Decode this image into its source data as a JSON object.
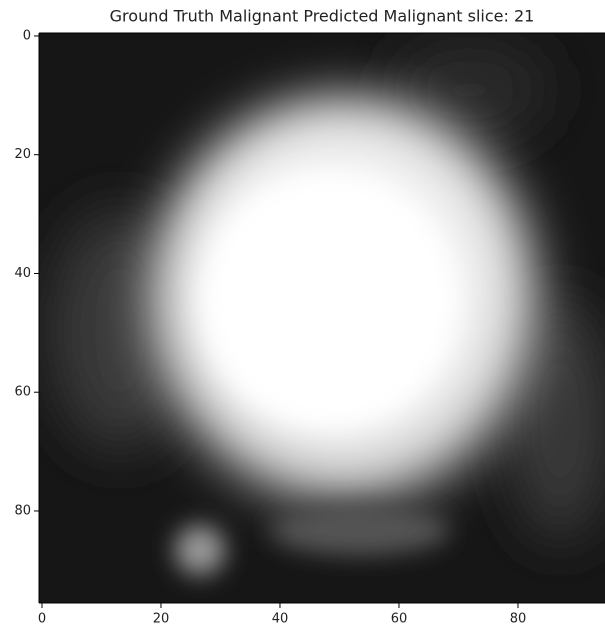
{
  "chart_data": {
    "type": "image",
    "title": "Ground Truth Malignant Predicted Malignant  slice: 21",
    "colormap": "gray",
    "xlim": [
      -0.5,
      95.5
    ],
    "ylim": [
      95.5,
      -0.5
    ],
    "xticks": [
      0,
      20,
      40,
      60,
      80
    ],
    "yticks": [
      0,
      20,
      40,
      60,
      80
    ]
  }
}
